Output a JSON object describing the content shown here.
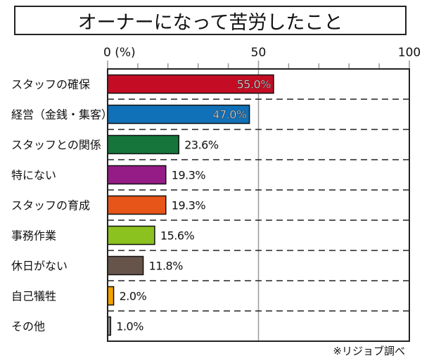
{
  "chart_data": {
    "type": "bar",
    "orientation": "horizontal",
    "title": "オーナーになって苦労したこと",
    "categories": [
      "スタッフの確保",
      "経営（金銭・集客）",
      "スタッフとの関係",
      "特にない",
      "スタッフの育成",
      "事務作業",
      "休日がない",
      "自己犠牲",
      "その他"
    ],
    "values": [
      55.0,
      47.0,
      23.6,
      19.3,
      19.3,
      15.6,
      11.8,
      2.0,
      1.0
    ],
    "data_labels": [
      "55.0%",
      "47.0%",
      "23.6%",
      "19.3%",
      "19.3%",
      "15.6%",
      "11.8%",
      "2.0%",
      "1.0%"
    ],
    "colors": [
      "#c40d24",
      "#1070b8",
      "#15753a",
      "#951c86",
      "#e85518",
      "#8cc21f",
      "#66544a",
      "#f4a000",
      "#8a8a8a"
    ],
    "xlim": [
      0,
      100
    ],
    "tick_labels": [
      "0 (%)",
      "50",
      "100"
    ],
    "tick_values": [
      0,
      50,
      100
    ],
    "minor_tick_step": 10,
    "grid": "vertical line at 50, dashed row separators",
    "source_note": "※リジョブ調べ"
  }
}
